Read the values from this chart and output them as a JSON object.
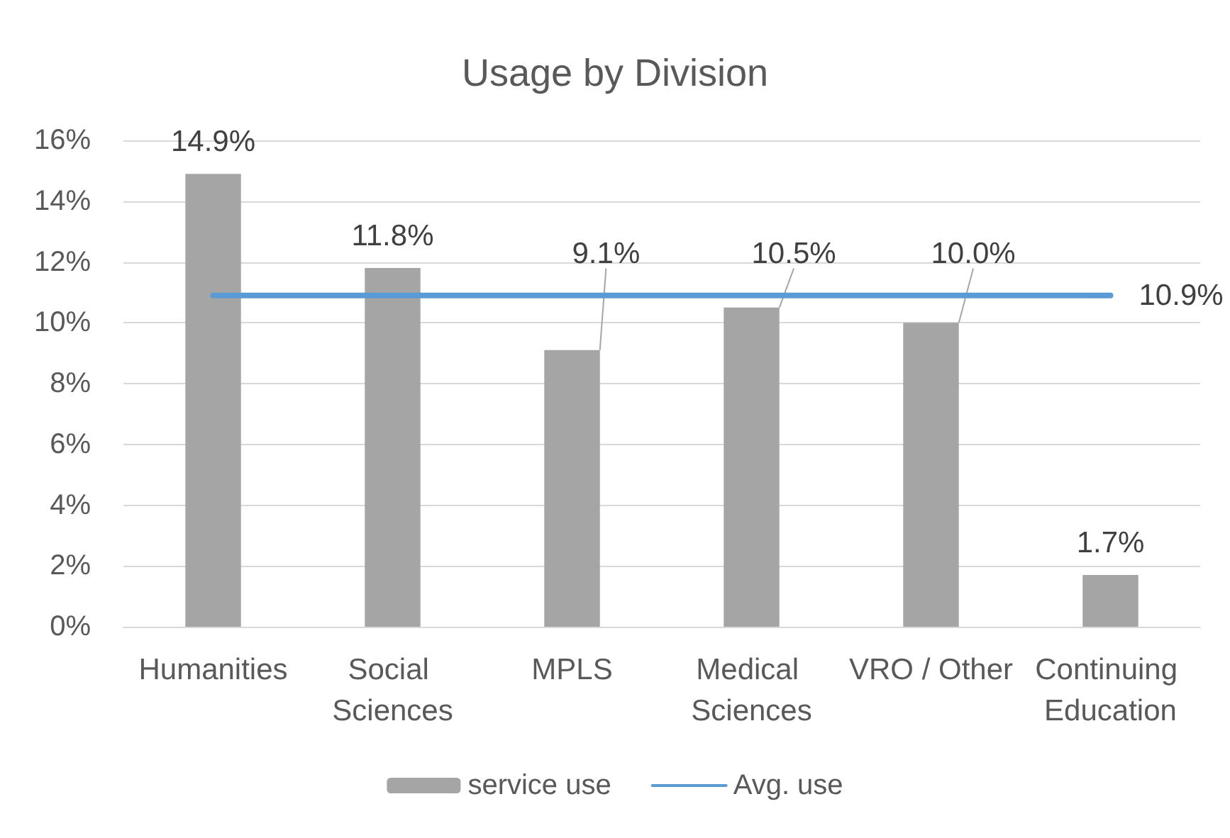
{
  "chart_data": {
    "type": "bar",
    "title": "Usage by Division",
    "categories": [
      "Humanities",
      "Social Sciences",
      "MPLS",
      "Medical Sciences",
      "VRO / Other",
      "Continuing Education"
    ],
    "series": [
      {
        "name": "service use",
        "color": "#a5a5a5",
        "values": [
          14.9,
          11.8,
          9.1,
          10.5,
          10.0,
          1.7
        ],
        "value_labels": [
          "14.9%",
          "11.8%",
          "9.1%",
          "10.5%",
          "10.0%",
          "1.7%"
        ]
      },
      {
        "name": "Avg. use",
        "type": "line",
        "color": "#5b9bd5",
        "values": [
          10.9,
          10.9,
          10.9,
          10.9,
          10.9,
          10.9
        ],
        "value_labels": [
          null,
          null,
          null,
          null,
          null,
          "10.9%"
        ]
      }
    ],
    "ylim": [
      0,
      16
    ],
    "yticks": [
      {
        "value": 0,
        "label": "0%"
      },
      {
        "value": 2,
        "label": "2%"
      },
      {
        "value": 4,
        "label": "4%"
      },
      {
        "value": 6,
        "label": "6%"
      },
      {
        "value": 8,
        "label": "8%"
      },
      {
        "value": 10,
        "label": "10%"
      },
      {
        "value": 12,
        "label": "12%"
      },
      {
        "value": 14,
        "label": "14%"
      },
      {
        "value": 16,
        "label": "16%"
      }
    ],
    "grid": "y",
    "legend": "bottom",
    "marker": "none",
    "line_style": "solid"
  }
}
